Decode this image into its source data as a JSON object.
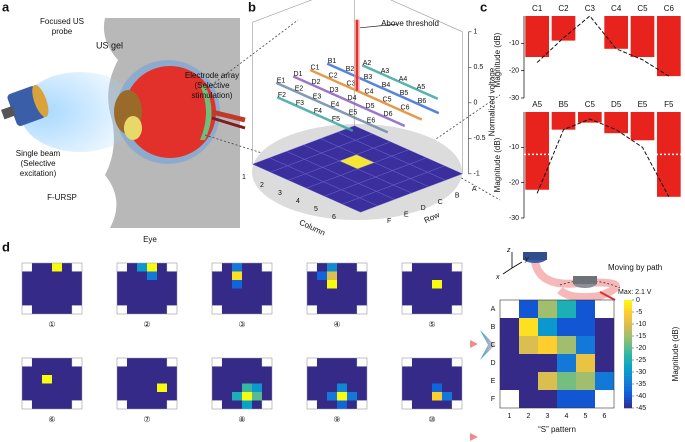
{
  "panel_labels": [
    "a",
    "b",
    "c",
    "d"
  ],
  "panel_a": {
    "probe": [
      "Focused US",
      "probe"
    ],
    "gel": "US gel",
    "electrode": [
      "Electrode array",
      "(Selective",
      "stimulation)"
    ],
    "beam": [
      "Single beam",
      "(Selective",
      "excitation)"
    ],
    "device": "F-URSP",
    "eye": "Eye"
  },
  "panel_b": {
    "z_label": "Normalized voltage",
    "zlim": [
      -1,
      1
    ],
    "zticks": [
      1,
      0.5,
      0,
      -0.5,
      -1
    ],
    "column_label": "Column",
    "row_label": "Row",
    "columns": [
      1,
      2,
      3,
      4,
      5,
      6
    ],
    "rows": [
      "A",
      "B",
      "C",
      "D",
      "E",
      "F"
    ],
    "electrodes": [
      [
        "A2",
        "A3",
        "A4",
        "A5"
      ],
      [
        "B1",
        "B2",
        "B3",
        "B4",
        "B5",
        "B6"
      ],
      [
        "C1",
        "C2",
        "C3",
        "C4",
        "C5",
        "C6"
      ],
      [
        "D1",
        "D2",
        "D3",
        "D4",
        "D5",
        "D6"
      ],
      [
        "E1",
        "E2",
        "E3",
        "E4",
        "E5",
        "E6"
      ],
      [
        "F2",
        "F3",
        "F4",
        "F5"
      ]
    ],
    "annotation": "Above threshold",
    "peak": 1
  },
  "panel_c": {
    "y_label": "Magnitude (dB)",
    "charts": [
      {
        "type": "bar",
        "categories": [
          "C1",
          "C2",
          "C3",
          "C4",
          "C5",
          "C6"
        ],
        "values": [
          -15,
          -9,
          0,
          -12,
          -15,
          -22
        ],
        "fit_values": [
          -17,
          -8,
          0,
          -12,
          -16,
          -22
        ],
        "color": "#e8231d",
        "ylim": [
          -30,
          0
        ],
        "yticks": [
          -10,
          -20,
          -30
        ]
      },
      {
        "type": "bar",
        "categories": [
          "A5",
          "B5",
          "C5",
          "D5",
          "E5",
          "F5"
        ],
        "values": [
          -22,
          -5,
          -3,
          -6,
          -8,
          -24
        ],
        "fit_values": [
          -23,
          -5,
          -2,
          -5,
          -10,
          -24
        ],
        "color": "#e8231d",
        "ylim": [
          -30,
          0
        ],
        "yticks": [
          -10,
          -20,
          -30
        ],
        "threshold": -12
      }
    ]
  },
  "panel_d": {
    "maps": [
      {
        "label": "①",
        "values": [
          [
            null,
            -45,
            -45,
            0,
            -45,
            null
          ],
          [
            -45,
            -45,
            -45,
            -45,
            -45,
            -45
          ],
          [
            -45,
            -45,
            -45,
            -45,
            -45,
            -45
          ],
          [
            -45,
            -45,
            -45,
            -45,
            -45,
            -45
          ],
          [
            -45,
            -45,
            -45,
            -45,
            -45,
            -45
          ],
          [
            null,
            -45,
            -45,
            -45,
            -45,
            null
          ]
        ]
      },
      {
        "label": "②",
        "values": [
          [
            null,
            -45,
            -30,
            0,
            -45,
            null
          ],
          [
            -45,
            -45,
            -45,
            -35,
            -45,
            -45
          ],
          [
            -45,
            -45,
            -45,
            -45,
            -45,
            -45
          ],
          [
            -45,
            -45,
            -45,
            -45,
            -45,
            -45
          ],
          [
            -45,
            -45,
            -45,
            -45,
            -45,
            -45
          ],
          [
            null,
            -45,
            -45,
            -45,
            -45,
            null
          ]
        ]
      },
      {
        "label": "③",
        "values": [
          [
            null,
            -45,
            -35,
            -45,
            -45,
            null
          ],
          [
            -45,
            -45,
            -3,
            -45,
            -45,
            -45
          ],
          [
            -45,
            -45,
            -38,
            -45,
            -45,
            -45
          ],
          [
            -45,
            -45,
            -45,
            -45,
            -45,
            -45
          ],
          [
            -45,
            -45,
            -45,
            -45,
            -45,
            -45
          ],
          [
            null,
            -45,
            -45,
            -45,
            -45,
            null
          ]
        ]
      },
      {
        "label": "④",
        "values": [
          [
            null,
            -45,
            -32,
            -45,
            -45,
            null
          ],
          [
            -45,
            -38,
            -10,
            -45,
            -45,
            -45
          ],
          [
            -45,
            -45,
            0,
            -45,
            -45,
            -45
          ],
          [
            -45,
            -45,
            -45,
            -45,
            -45,
            -45
          ],
          [
            -45,
            -45,
            -45,
            -45,
            -45,
            -45
          ],
          [
            null,
            -45,
            -45,
            -45,
            -45,
            null
          ]
        ]
      },
      {
        "label": "⑤",
        "values": [
          [
            null,
            -45,
            -45,
            -45,
            -45,
            null
          ],
          [
            -45,
            -45,
            -45,
            -45,
            -45,
            -45
          ],
          [
            -45,
            -45,
            -45,
            0,
            -45,
            -45
          ],
          [
            -45,
            -45,
            -45,
            -45,
            -45,
            -45
          ],
          [
            -45,
            -45,
            -45,
            -45,
            -45,
            -45
          ],
          [
            null,
            -45,
            -45,
            -45,
            -45,
            null
          ]
        ]
      },
      {
        "label": "⑥",
        "values": [
          [
            null,
            -45,
            -45,
            -45,
            -45,
            null
          ],
          [
            -45,
            -45,
            -45,
            -45,
            -45,
            -45
          ],
          [
            -45,
            -45,
            0,
            -45,
            -45,
            -45
          ],
          [
            -45,
            -45,
            -45,
            -45,
            -45,
            -45
          ],
          [
            -45,
            -45,
            -45,
            -45,
            -45,
            -45
          ],
          [
            null,
            -45,
            -45,
            -45,
            -45,
            null
          ]
        ]
      },
      {
        "label": "⑦",
        "values": [
          [
            null,
            -45,
            -45,
            -45,
            -45,
            null
          ],
          [
            -45,
            -45,
            -45,
            -45,
            -45,
            -45
          ],
          [
            -45,
            -45,
            -45,
            -45,
            -45,
            -45
          ],
          [
            -45,
            -45,
            -45,
            -45,
            0,
            -45
          ],
          [
            -45,
            -45,
            -45,
            -45,
            -45,
            -45
          ],
          [
            null,
            -45,
            -45,
            -45,
            -45,
            null
          ]
        ]
      },
      {
        "label": "⑧",
        "values": [
          [
            null,
            -45,
            -45,
            -45,
            -45,
            null
          ],
          [
            -45,
            -45,
            -45,
            -45,
            -45,
            -45
          ],
          [
            -45,
            -45,
            -45,
            -45,
            -45,
            -45
          ],
          [
            -45,
            -45,
            -45,
            -22,
            -30,
            -45
          ],
          [
            -45,
            -45,
            -25,
            0,
            -20,
            -45
          ],
          [
            null,
            -45,
            -45,
            -28,
            -45,
            null
          ]
        ]
      },
      {
        "label": "⑨",
        "values": [
          [
            null,
            -45,
            -45,
            -45,
            -45,
            null
          ],
          [
            -45,
            -45,
            -45,
            -45,
            -45,
            -45
          ],
          [
            -45,
            -45,
            -45,
            -45,
            -45,
            -45
          ],
          [
            -45,
            -45,
            -45,
            -33,
            -45,
            -45
          ],
          [
            -45,
            -45,
            -35,
            0,
            -35,
            -45
          ],
          [
            null,
            -45,
            -45,
            -38,
            -45,
            null
          ]
        ]
      },
      {
        "label": "⑩",
        "values": [
          [
            null,
            -45,
            -45,
            -45,
            -45,
            null
          ],
          [
            -45,
            -45,
            -45,
            -45,
            -45,
            -45
          ],
          [
            -45,
            -45,
            -45,
            -45,
            -45,
            -45
          ],
          [
            -45,
            -45,
            -45,
            -38,
            -45,
            -45
          ],
          [
            -45,
            -45,
            -45,
            -5,
            -35,
            -45
          ],
          [
            null,
            -45,
            -45,
            -45,
            -45,
            null
          ]
        ]
      }
    ],
    "result": {
      "row_labels": [
        "A",
        "B",
        "C",
        "D",
        "E",
        "F"
      ],
      "col_labels": [
        1,
        2,
        3,
        4,
        5,
        6
      ],
      "x_label": "“S” pattern",
      "values": [
        [
          null,
          -40,
          -15,
          -25,
          -40,
          null
        ],
        [
          -45,
          -3,
          -30,
          -40,
          -40,
          -45
        ],
        [
          -45,
          -10,
          -5,
          -15,
          -35,
          -45
        ],
        [
          -45,
          -45,
          -45,
          -35,
          -8,
          -45
        ],
        [
          -45,
          -45,
          -10,
          -18,
          -15,
          -35
        ],
        [
          null,
          -45,
          -45,
          -40,
          -40,
          null
        ]
      ],
      "colorbar_label": "Magnitude (dB)",
      "clim": [
        -45,
        0
      ],
      "cticks": [
        0,
        -5,
        -10,
        -15,
        -20,
        -25,
        -30,
        -35,
        -40,
        -45
      ]
    },
    "path_label": "Moving by path",
    "max_label": "Max: 2.1 V",
    "axes": [
      "z",
      "y",
      "x"
    ]
  }
}
